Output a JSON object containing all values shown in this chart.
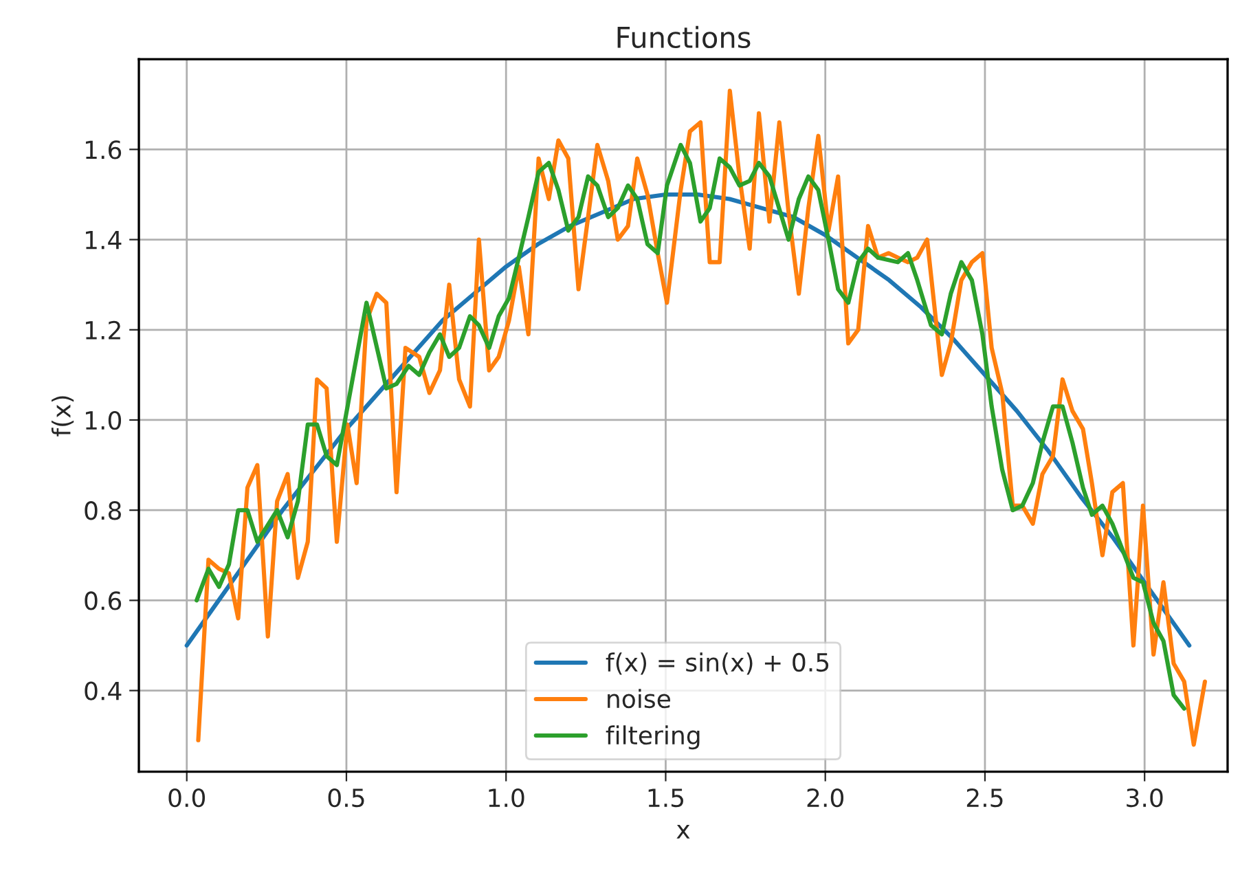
{
  "chart_data": {
    "type": "line",
    "title": "Functions",
    "xlabel": "x",
    "ylabel": "f(x)",
    "xlim": [
      -0.15,
      3.26
    ],
    "ylim": [
      0.22,
      1.8
    ],
    "xticks": [
      {
        "value": 0,
        "label": "0.0"
      },
      0.5,
      {
        "value": 1,
        "label": "1.0"
      },
      1.5,
      {
        "value": 2,
        "label": "2.0"
      },
      2.5,
      {
        "value": 3,
        "label": "3.0"
      }
    ],
    "yticks": [
      0.4,
      0.6,
      0.8,
      {
        "value": 1,
        "label": "1.0"
      },
      1.2,
      1.4,
      1.6
    ],
    "grid": true,
    "legend": "bottom",
    "series": [
      {
        "name": "f(x) = sin(x) + 0.5",
        "color": "#1f77b4",
        "x": [
          0,
          0.1,
          0.2,
          0.3,
          0.4,
          0.5,
          0.6,
          0.7,
          0.8,
          0.9,
          1.0,
          1.1,
          1.2,
          1.3,
          1.4,
          1.5,
          1.6,
          1.7,
          1.8,
          1.9,
          2.0,
          2.1,
          2.2,
          2.3,
          2.4,
          2.5,
          2.6,
          2.7,
          2.8,
          2.9,
          3.0,
          3.1,
          3.14
        ],
        "values": [
          0.5,
          0.6,
          0.7,
          0.8,
          0.89,
          0.98,
          1.06,
          1.14,
          1.22,
          1.28,
          1.34,
          1.39,
          1.43,
          1.46,
          1.49,
          1.5,
          1.5,
          1.49,
          1.47,
          1.45,
          1.41,
          1.36,
          1.31,
          1.25,
          1.18,
          1.1,
          1.02,
          0.93,
          0.83,
          0.74,
          0.64,
          0.54,
          0.5
        ]
      },
      {
        "name": "noise",
        "color": "#ff7f0e",
        "x": [
          0.036,
          0.068,
          0.101,
          0.132,
          0.161,
          0.19,
          0.221,
          0.254,
          0.283,
          0.316,
          0.348,
          0.379,
          0.408,
          0.438,
          0.47,
          0.503,
          0.532,
          0.563,
          0.595,
          0.625,
          0.657,
          0.685,
          0.728,
          0.76,
          0.793,
          0.822,
          0.853,
          0.887,
          0.915,
          0.947,
          0.977,
          1.009,
          1.04,
          1.07,
          1.102,
          1.134,
          1.164,
          1.195,
          1.227,
          1.257,
          1.286,
          1.32,
          1.35,
          1.382,
          1.411,
          1.443,
          1.475,
          1.504,
          1.547,
          1.576,
          1.609,
          1.638,
          1.669,
          1.701,
          1.731,
          1.763,
          1.792,
          1.825,
          1.856,
          1.885,
          1.917,
          1.947,
          1.978,
          2.01,
          2.04,
          2.072,
          2.103,
          2.134,
          2.165,
          2.198,
          2.227,
          2.259,
          2.288,
          2.319,
          2.365,
          2.393,
          2.426,
          2.459,
          2.492,
          2.521,
          2.554,
          2.587,
          2.617,
          2.65,
          2.68,
          2.713,
          2.743,
          2.774,
          2.807,
          2.835,
          2.868,
          2.899,
          2.932,
          2.965,
          2.995,
          3.028,
          3.059,
          3.091,
          3.124,
          3.154,
          3.189
        ],
        "values": [
          0.29,
          0.69,
          0.67,
          0.66,
          0.56,
          0.85,
          0.9,
          0.52,
          0.82,
          0.88,
          0.65,
          0.73,
          1.09,
          1.07,
          0.73,
          0.99,
          0.86,
          1.22,
          1.28,
          1.26,
          0.84,
          1.16,
          1.14,
          1.06,
          1.11,
          1.3,
          1.09,
          1.03,
          1.4,
          1.11,
          1.14,
          1.22,
          1.34,
          1.19,
          1.58,
          1.49,
          1.62,
          1.58,
          1.29,
          1.45,
          1.61,
          1.53,
          1.4,
          1.43,
          1.58,
          1.5,
          1.37,
          1.26,
          1.51,
          1.64,
          1.66,
          1.35,
          1.35,
          1.73,
          1.54,
          1.38,
          1.68,
          1.44,
          1.66,
          1.46,
          1.28,
          1.47,
          1.63,
          1.42,
          1.54,
          1.17,
          1.2,
          1.43,
          1.36,
          1.37,
          1.36,
          1.35,
          1.36,
          1.4,
          1.1,
          1.17,
          1.31,
          1.35,
          1.37,
          1.16,
          1.06,
          0.81,
          0.81,
          0.77,
          0.88,
          0.92,
          1.09,
          1.02,
          0.98,
          0.86,
          0.7,
          0.84,
          0.86,
          0.5,
          0.81,
          0.48,
          0.64,
          0.46,
          0.42,
          0.28,
          0.42
        ]
      },
      {
        "name": "filtering",
        "color": "#2ca02c",
        "x": [
          0.031,
          0.068,
          0.101,
          0.132,
          0.161,
          0.19,
          0.221,
          0.283,
          0.316,
          0.348,
          0.379,
          0.408,
          0.438,
          0.47,
          0.532,
          0.563,
          0.625,
          0.657,
          0.695,
          0.728,
          0.76,
          0.793,
          0.822,
          0.853,
          0.887,
          0.915,
          0.947,
          0.977,
          1.009,
          1.04,
          1.07,
          1.102,
          1.134,
          1.164,
          1.195,
          1.227,
          1.257,
          1.286,
          1.32,
          1.35,
          1.382,
          1.411,
          1.443,
          1.475,
          1.504,
          1.547,
          1.576,
          1.609,
          1.638,
          1.669,
          1.701,
          1.731,
          1.763,
          1.792,
          1.825,
          1.885,
          1.917,
          1.947,
          1.978,
          2.01,
          2.04,
          2.072,
          2.103,
          2.134,
          2.165,
          2.227,
          2.259,
          2.288,
          2.331,
          2.365,
          2.393,
          2.426,
          2.459,
          2.492,
          2.521,
          2.554,
          2.587,
          2.617,
          2.65,
          2.68,
          2.713,
          2.743,
          2.774,
          2.807,
          2.835,
          2.868,
          2.899,
          2.932,
          2.965,
          2.995,
          3.028,
          3.059,
          3.091,
          3.124
        ],
        "values": [
          0.6,
          0.67,
          0.63,
          0.68,
          0.8,
          0.8,
          0.73,
          0.8,
          0.74,
          0.82,
          0.99,
          0.99,
          0.92,
          0.9,
          1.14,
          1.26,
          1.07,
          1.08,
          1.12,
          1.1,
          1.15,
          1.19,
          1.14,
          1.16,
          1.23,
          1.21,
          1.16,
          1.23,
          1.27,
          1.36,
          1.45,
          1.55,
          1.57,
          1.51,
          1.42,
          1.45,
          1.54,
          1.52,
          1.45,
          1.47,
          1.52,
          1.49,
          1.39,
          1.37,
          1.52,
          1.61,
          1.57,
          1.44,
          1.47,
          1.58,
          1.56,
          1.52,
          1.53,
          1.57,
          1.54,
          1.4,
          1.49,
          1.54,
          1.51,
          1.4,
          1.29,
          1.26,
          1.35,
          1.38,
          1.36,
          1.35,
          1.37,
          1.31,
          1.21,
          1.19,
          1.28,
          1.35,
          1.31,
          1.19,
          1.03,
          0.89,
          0.8,
          0.81,
          0.86,
          0.95,
          1.03,
          1.03,
          0.95,
          0.85,
          0.79,
          0.81,
          0.77,
          0.71,
          0.65,
          0.64,
          0.55,
          0.51,
          0.39,
          0.36
        ]
      }
    ]
  }
}
